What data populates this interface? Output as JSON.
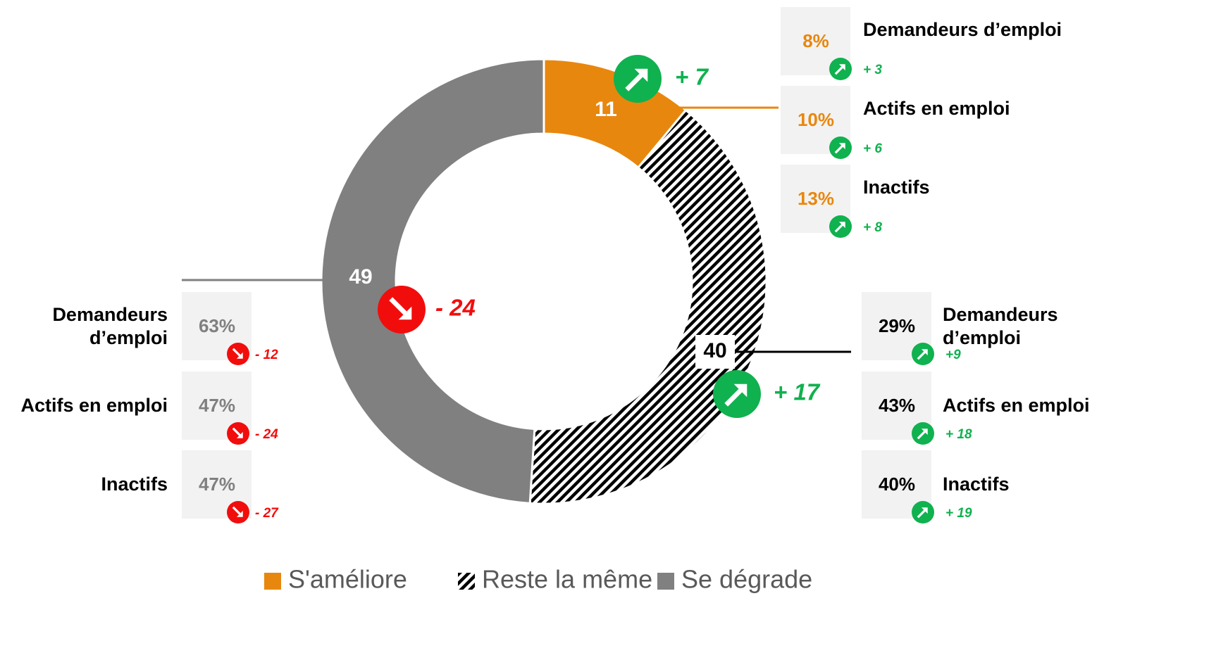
{
  "chart_data": {
    "type": "pie",
    "donut": true,
    "categories": [
      "S'améliore",
      "Reste la même",
      "Se dégrade"
    ],
    "values": [
      11,
      40,
      49
    ],
    "colors": [
      "#e8870e",
      "hatch",
      "#808080"
    ],
    "changes": [
      7,
      17,
      -24
    ],
    "change_labels": [
      "+ 7",
      "+ 17",
      "- 24"
    ],
    "breakdowns": [
      [
        {
          "label": "Demandeurs d’emploi",
          "value": 8,
          "value_label": "8%",
          "change": 3,
          "change_label": "+ 3"
        },
        {
          "label": "Actifs en emploi",
          "value": 10,
          "value_label": "10%",
          "change": 6,
          "change_label": "+ 6"
        },
        {
          "label": "Inactifs",
          "value": 13,
          "value_label": "13%",
          "change": 8,
          "change_label": "+ 8"
        }
      ],
      [
        {
          "label": "Demandeurs d’emploi",
          "value": 29,
          "value_label": "29%",
          "change": 9,
          "change_label": "+9"
        },
        {
          "label": "Actifs en emploi",
          "value": 43,
          "value_label": "43%",
          "change": 18,
          "change_label": "+ 18"
        },
        {
          "label": "Inactifs",
          "value": 40,
          "value_label": "40%",
          "change": 19,
          "change_label": "+ 19"
        }
      ],
      [
        {
          "label": "Demandeurs d’emploi",
          "value": 63,
          "value_label": "63%",
          "change": -12,
          "change_label": "- 12"
        },
        {
          "label": "Actifs en emploi",
          "value": 47,
          "value_label": "47%",
          "change": -24,
          "change_label": "- 24"
        },
        {
          "label": "Inactifs",
          "value": 47,
          "value_label": "47%",
          "change": -27,
          "change_label": "- 27"
        }
      ]
    ],
    "legend": "bottom"
  }
}
